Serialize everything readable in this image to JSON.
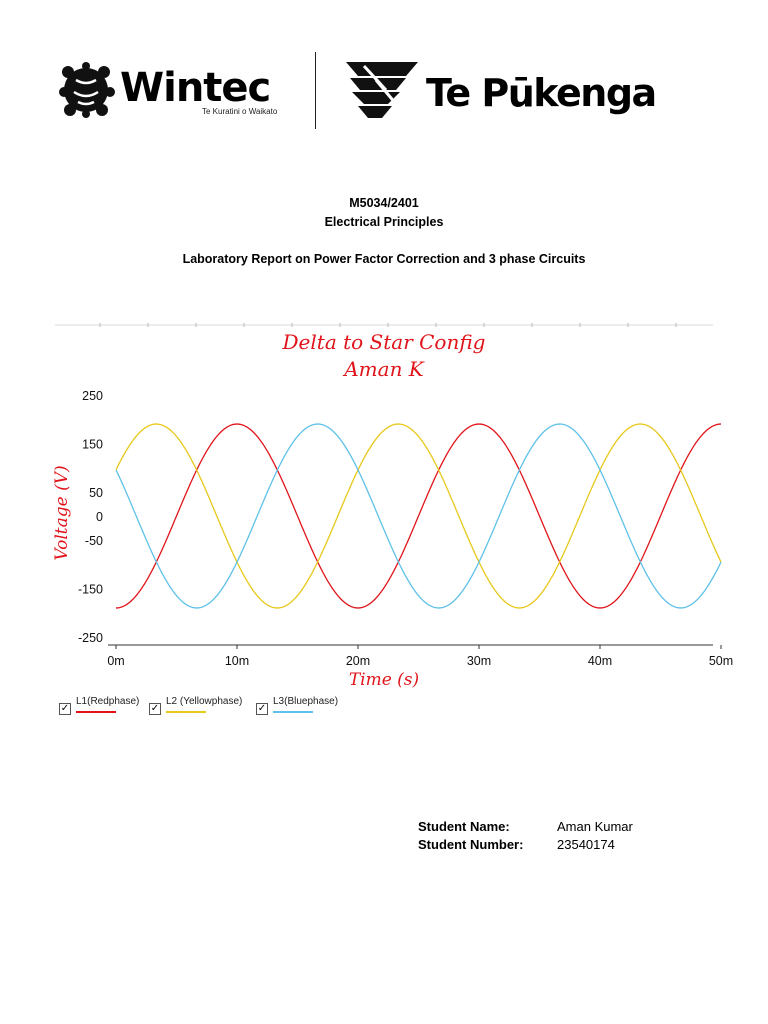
{
  "logos": {
    "wintec_name": "Wintec",
    "wintec_subtitle": "Te Kuratini o Waikato",
    "tepukenga_name": "Te Pūkenga"
  },
  "header": {
    "course_code": "M5034/2401",
    "course_name": "Electrical Principles",
    "report_title": "Laboratory Report on Power Factor Correction and 3 phase Circuits"
  },
  "chart_data": {
    "type": "line",
    "title": [
      "Delta to Star Config",
      "Aman K"
    ],
    "xlabel": "Time (s)",
    "ylabel": "Voltage (V)",
    "x_ticks": [
      "0m",
      "10m",
      "20m",
      "30m",
      "40m",
      "50m"
    ],
    "y_ticks": [
      "250",
      "150",
      "50",
      "0",
      "-50",
      "-150",
      "-250"
    ],
    "y_tick_values": [
      250,
      150,
      50,
      0,
      -50,
      -150,
      -250
    ],
    "x_tick_values": [
      0,
      10,
      20,
      30,
      40,
      50
    ],
    "xlim": [
      0,
      50
    ],
    "ylim": [
      -250,
      250
    ],
    "x_unit": "ms",
    "frequency_hz": 50,
    "amplitude": 190,
    "grid": false,
    "legend_position": "bottom-left",
    "series": [
      {
        "name": "L1(Redphase)",
        "color": "#e0151b",
        "peak_at": 10.0
      },
      {
        "name": "L2 (Yellowphase)",
        "color": "#e8c81a",
        "peak_at": 3.33
      },
      {
        "name": "L3(Bluephase)",
        "color": "#5ec1e8",
        "peak_at": 16.67
      }
    ]
  },
  "student": {
    "name_label": "Student Name:",
    "name_value": "Aman Kumar",
    "number_label": "Student Number:",
    "number_value": "23540174"
  }
}
